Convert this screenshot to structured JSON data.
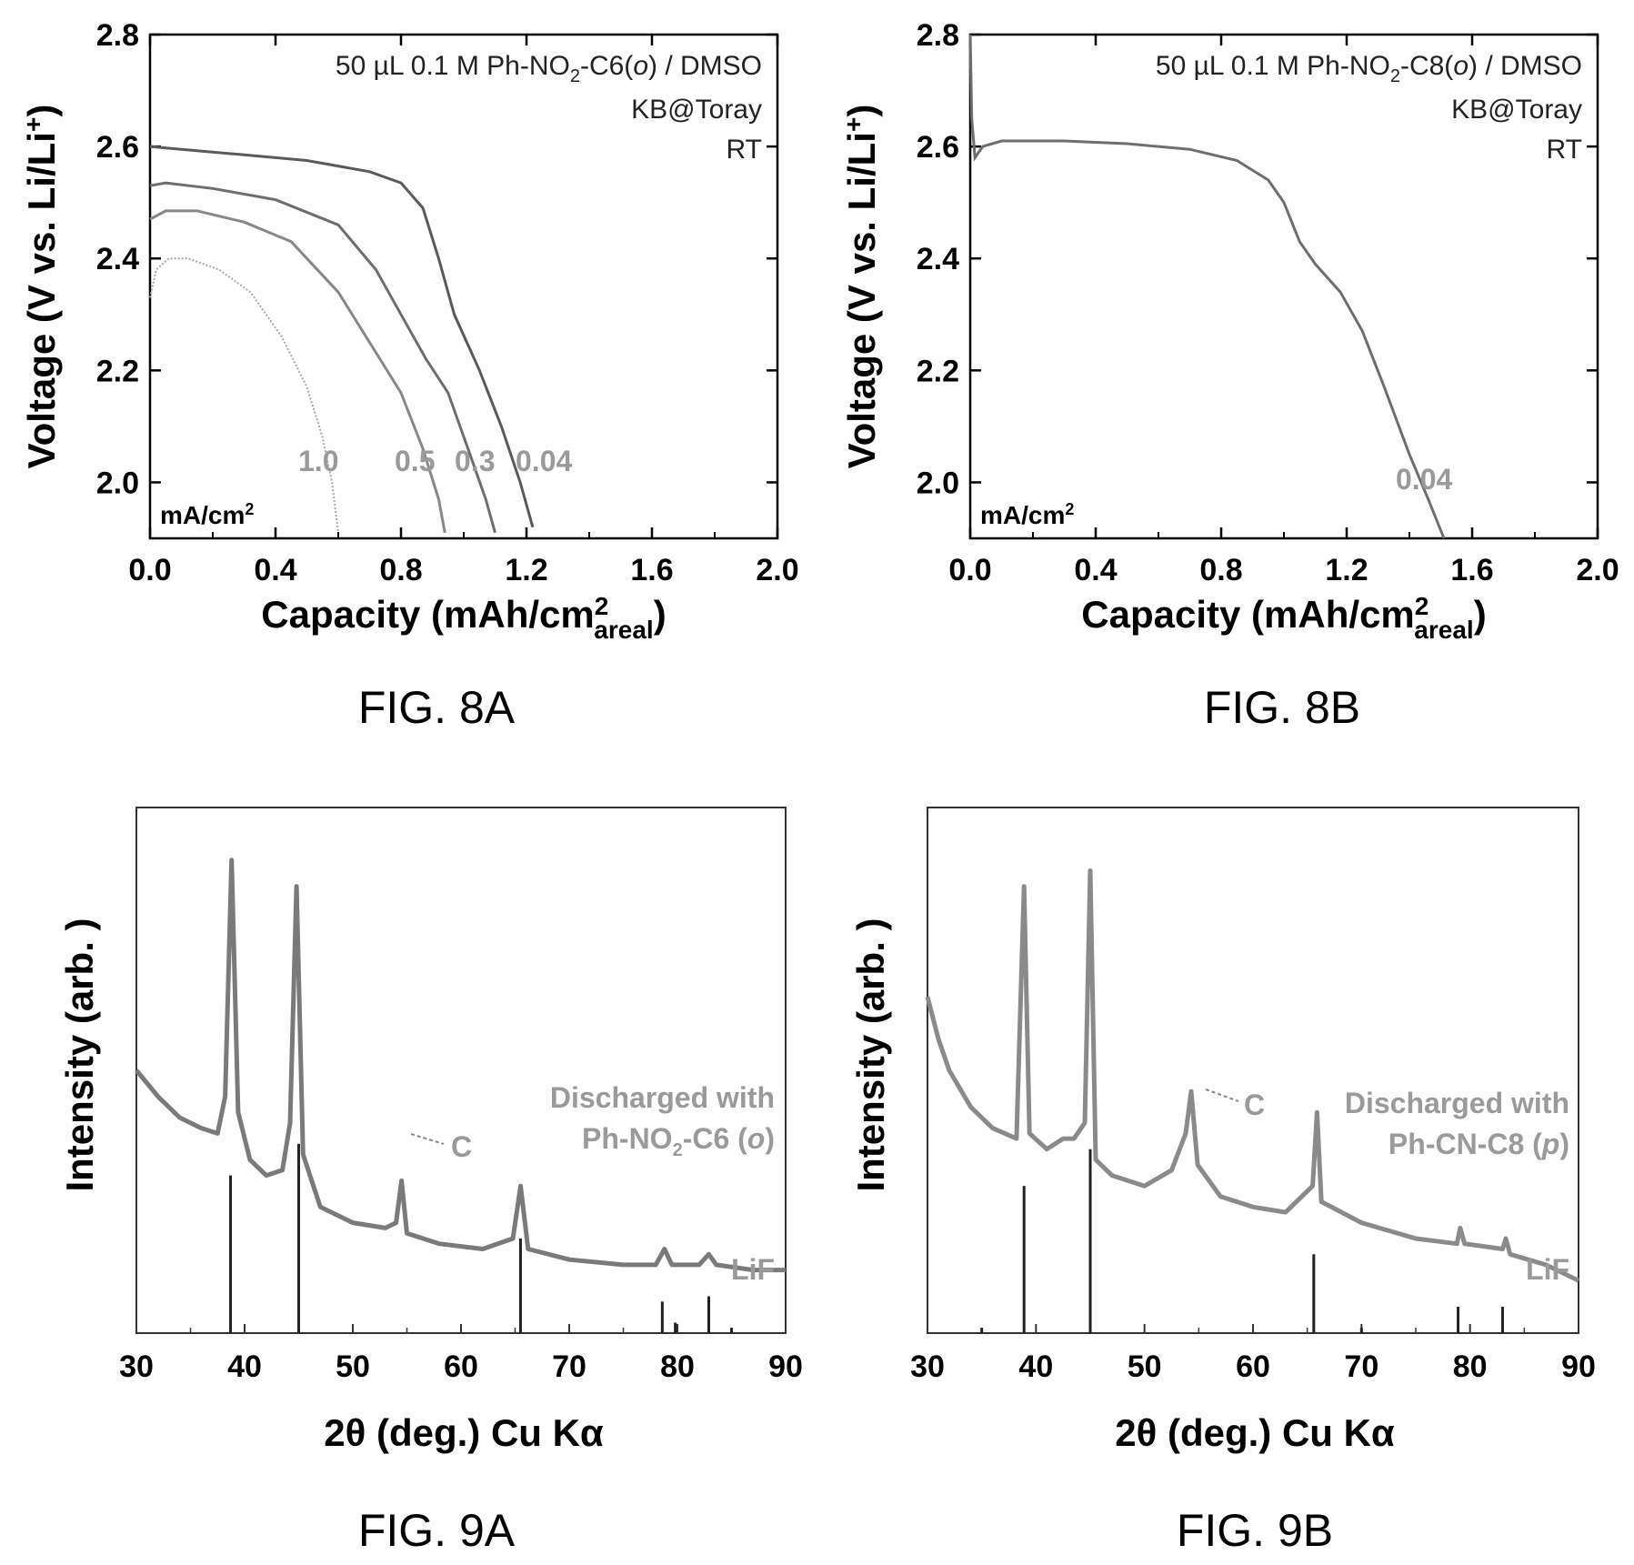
{
  "figures": [
    {
      "id": "8A",
      "caption": "FIG. 8A"
    },
    {
      "id": "8B",
      "caption": "FIG. 8B"
    },
    {
      "id": "9A",
      "caption": "FIG. 9A"
    },
    {
      "id": "9B",
      "caption": "FIG. 9B"
    }
  ],
  "chart_data": [
    {
      "type": "line",
      "caption": "FIG. 8A",
      "xlabel": "Capacity (mAh/cm",
      "xlabel_sup": "2",
      "xlabel_sub": "areal",
      "xlabel_close": ")",
      "ylabel": "Voltage (V vs. Li/Li",
      "ylabel_sup": "+",
      "ylabel_close": ")",
      "xlim": [
        0,
        2.0
      ],
      "ylim": [
        1.9,
        2.8
      ],
      "xticks": [
        "0.0",
        "0.4",
        "0.8",
        "1.2",
        "1.6",
        "2.0"
      ],
      "yticks": [
        "2.0",
        "2.2",
        "2.4",
        "2.6",
        "2.8"
      ],
      "annotations": [
        "50 µL 0.1 M Ph-NO",
        "2",
        "-C6(",
        "o",
        ") / DMSO",
        "KB@Toray",
        "RT"
      ],
      "unit_label": "mA/cm",
      "unit_label_sup": "2",
      "series": [
        {
          "name": "0.04",
          "color": "#5a5a5a",
          "points": [
            [
              0.0,
              2.6
            ],
            [
              0.1,
              2.595
            ],
            [
              0.3,
              2.585
            ],
            [
              0.5,
              2.575
            ],
            [
              0.7,
              2.555
            ],
            [
              0.8,
              2.535
            ],
            [
              0.87,
              2.49
            ],
            [
              0.92,
              2.4
            ],
            [
              0.97,
              2.3
            ],
            [
              1.05,
              2.2
            ],
            [
              1.12,
              2.1
            ],
            [
              1.18,
              2.0
            ],
            [
              1.22,
              1.92
            ]
          ]
        },
        {
          "name": "0.3",
          "color": "#6e6e6e",
          "points": [
            [
              0.0,
              2.53
            ],
            [
              0.05,
              2.535
            ],
            [
              0.2,
              2.525
            ],
            [
              0.4,
              2.505
            ],
            [
              0.6,
              2.46
            ],
            [
              0.72,
              2.38
            ],
            [
              0.8,
              2.3
            ],
            [
              0.88,
              2.22
            ],
            [
              0.95,
              2.16
            ],
            [
              1.02,
              2.05
            ],
            [
              1.07,
              1.97
            ],
            [
              1.1,
              1.91
            ]
          ]
        },
        {
          "name": "0.5",
          "color": "#888888",
          "points": [
            [
              0.0,
              2.47
            ],
            [
              0.05,
              2.485
            ],
            [
              0.15,
              2.485
            ],
            [
              0.3,
              2.465
            ],
            [
              0.45,
              2.43
            ],
            [
              0.6,
              2.34
            ],
            [
              0.7,
              2.25
            ],
            [
              0.8,
              2.16
            ],
            [
              0.87,
              2.06
            ],
            [
              0.92,
              1.97
            ],
            [
              0.94,
              1.91
            ]
          ]
        },
        {
          "name": "1.0",
          "color": "#a8a8a8",
          "points": [
            [
              0.0,
              2.33
            ],
            [
              0.02,
              2.38
            ],
            [
              0.06,
              2.4
            ],
            [
              0.12,
              2.4
            ],
            [
              0.22,
              2.38
            ],
            [
              0.32,
              2.34
            ],
            [
              0.42,
              2.26
            ],
            [
              0.5,
              2.17
            ],
            [
              0.55,
              2.08
            ],
            [
              0.58,
              2.0
            ],
            [
              0.6,
              1.91
            ]
          ]
        }
      ],
      "curve_labels": [
        "1.0",
        "0.5",
        "0.3",
        "0.04"
      ]
    },
    {
      "type": "line",
      "caption": "FIG. 8B",
      "xlabel": "Capacity (mAh/cm",
      "xlabel_sup": "2",
      "xlabel_sub": "areal",
      "xlabel_close": ")",
      "ylabel": "Voltage (V vs. Li/Li",
      "ylabel_sup": "+",
      "ylabel_close": ")",
      "xlim": [
        0,
        2.0
      ],
      "ylim": [
        1.9,
        2.8
      ],
      "xticks": [
        "0.0",
        "0.4",
        "0.8",
        "1.2",
        "1.6",
        "2.0"
      ],
      "yticks": [
        "2.0",
        "2.2",
        "2.4",
        "2.6",
        "2.8"
      ],
      "annotations": [
        "50 µL 0.1 M Ph-NO",
        "2",
        "-C8(",
        "o",
        ") / DMSO",
        "KB@Toray",
        "RT"
      ],
      "unit_label": "mA/cm",
      "unit_label_sup": "2",
      "series": [
        {
          "name": "0.04",
          "color": "#6e6e6e",
          "points": [
            [
              0.0,
              2.8
            ],
            [
              0.005,
              2.65
            ],
            [
              0.015,
              2.58
            ],
            [
              0.04,
              2.6
            ],
            [
              0.1,
              2.61
            ],
            [
              0.3,
              2.61
            ],
            [
              0.5,
              2.605
            ],
            [
              0.7,
              2.595
            ],
            [
              0.85,
              2.575
            ],
            [
              0.95,
              2.54
            ],
            [
              1.0,
              2.5
            ],
            [
              1.05,
              2.43
            ],
            [
              1.1,
              2.39
            ],
            [
              1.18,
              2.34
            ],
            [
              1.25,
              2.27
            ],
            [
              1.32,
              2.17
            ],
            [
              1.4,
              2.05
            ],
            [
              1.46,
              1.97
            ],
            [
              1.51,
              1.9
            ]
          ]
        }
      ],
      "curve_labels": [
        "0.04"
      ]
    },
    {
      "type": "line",
      "caption": "FIG. 9A",
      "xlabel": "2θ (deg.)  Cu Kα",
      "ylabel": "Intensity   (arb. )",
      "xlim": [
        30,
        90
      ],
      "xticks": [
        "30",
        "40",
        "50",
        "60",
        "70",
        "80",
        "90"
      ],
      "annotations": [
        "Discharged with",
        "Ph-NO",
        "2",
        "-C6 (",
        "o",
        ")",
        "C",
        "LiF"
      ],
      "series": [
        {
          "name": "Discharged with Ph-NO2-C6 (o)",
          "color": "#7a7a7a",
          "points": [
            [
              30,
              0.5
            ],
            [
              32,
              0.45
            ],
            [
              34,
              0.41
            ],
            [
              36,
              0.39
            ],
            [
              37.5,
              0.38
            ],
            [
              38.2,
              0.45
            ],
            [
              38.8,
              0.9
            ],
            [
              39.4,
              0.42
            ],
            [
              40.5,
              0.33
            ],
            [
              42,
              0.3
            ],
            [
              43.5,
              0.31
            ],
            [
              44.2,
              0.4
            ],
            [
              44.8,
              0.85
            ],
            [
              45.4,
              0.34
            ],
            [
              47,
              0.24
            ],
            [
              50,
              0.21
            ],
            [
              53,
              0.2
            ],
            [
              54,
              0.21
            ],
            [
              54.5,
              0.29
            ],
            [
              55,
              0.19
            ],
            [
              58,
              0.17
            ],
            [
              62,
              0.16
            ],
            [
              64.8,
              0.18
            ],
            [
              65.5,
              0.28
            ],
            [
              66.2,
              0.16
            ],
            [
              70,
              0.14
            ],
            [
              75,
              0.13
            ],
            [
              78,
              0.13
            ],
            [
              78.8,
              0.16
            ],
            [
              79.5,
              0.13
            ],
            [
              82,
              0.13
            ],
            [
              82.9,
              0.15
            ],
            [
              83.6,
              0.13
            ],
            [
              87,
              0.12
            ],
            [
              90,
              0.12
            ]
          ]
        }
      ],
      "lif_reference": {
        "name": "LiF",
        "color": "#222222",
        "peaks": [
          [
            38.7,
            0.3
          ],
          [
            45.0,
            0.36
          ],
          [
            65.5,
            0.18
          ],
          [
            78.6,
            0.06
          ],
          [
            82.9,
            0.07
          ],
          [
            79.8,
            0.02
          ],
          [
            85.0,
            0.01
          ]
        ]
      },
      "c_peak_position": 54.5
    },
    {
      "type": "line",
      "caption": "FIG. 9B",
      "xlabel": "2θ (deg.)  Cu Kα",
      "ylabel": "Intensity   (arb. )",
      "xlim": [
        30,
        90
      ],
      "xticks": [
        "30",
        "40",
        "50",
        "60",
        "70",
        "80",
        "90"
      ],
      "annotations": [
        "Discharged with",
        "Ph-CN-C8 (",
        "p",
        ")",
        "C",
        "LiF"
      ],
      "series": [
        {
          "name": "Discharged with Ph-CN-C8 (p)",
          "color": "#8a8a8a",
          "points": [
            [
              30,
              0.64
            ],
            [
              31,
              0.56
            ],
            [
              32,
              0.5
            ],
            [
              34,
              0.43
            ],
            [
              36,
              0.39
            ],
            [
              38.2,
              0.37
            ],
            [
              38.9,
              0.85
            ],
            [
              39.4,
              0.38
            ],
            [
              41,
              0.35
            ],
            [
              42.5,
              0.37
            ],
            [
              43.5,
              0.37
            ],
            [
              44.5,
              0.4
            ],
            [
              45.0,
              0.88
            ],
            [
              45.5,
              0.33
            ],
            [
              47,
              0.3
            ],
            [
              50,
              0.28
            ],
            [
              52.5,
              0.31
            ],
            [
              53.8,
              0.38
            ],
            [
              54.3,
              0.46
            ],
            [
              54.9,
              0.32
            ],
            [
              57,
              0.26
            ],
            [
              60,
              0.24
            ],
            [
              63,
              0.23
            ],
            [
              65.5,
              0.28
            ],
            [
              65.9,
              0.42
            ],
            [
              66.3,
              0.25
            ],
            [
              70,
              0.21
            ],
            [
              75,
              0.18
            ],
            [
              78.8,
              0.17
            ],
            [
              79.1,
              0.2
            ],
            [
              79.5,
              0.17
            ],
            [
              83,
              0.16
            ],
            [
              83.3,
              0.18
            ],
            [
              83.7,
              0.15
            ],
            [
              87,
              0.13
            ],
            [
              90,
              0.1
            ]
          ]
        }
      ],
      "lif_reference": {
        "name": "LiF",
        "color": "#222222",
        "peaks": [
          [
            38.9,
            0.28
          ],
          [
            45.0,
            0.35
          ],
          [
            65.6,
            0.15
          ],
          [
            70.0,
            0.01
          ],
          [
            78.9,
            0.05
          ],
          [
            83.0,
            0.05
          ],
          [
            35.0,
            0.01
          ]
        ]
      },
      "c_peak_position": 54.3
    }
  ]
}
